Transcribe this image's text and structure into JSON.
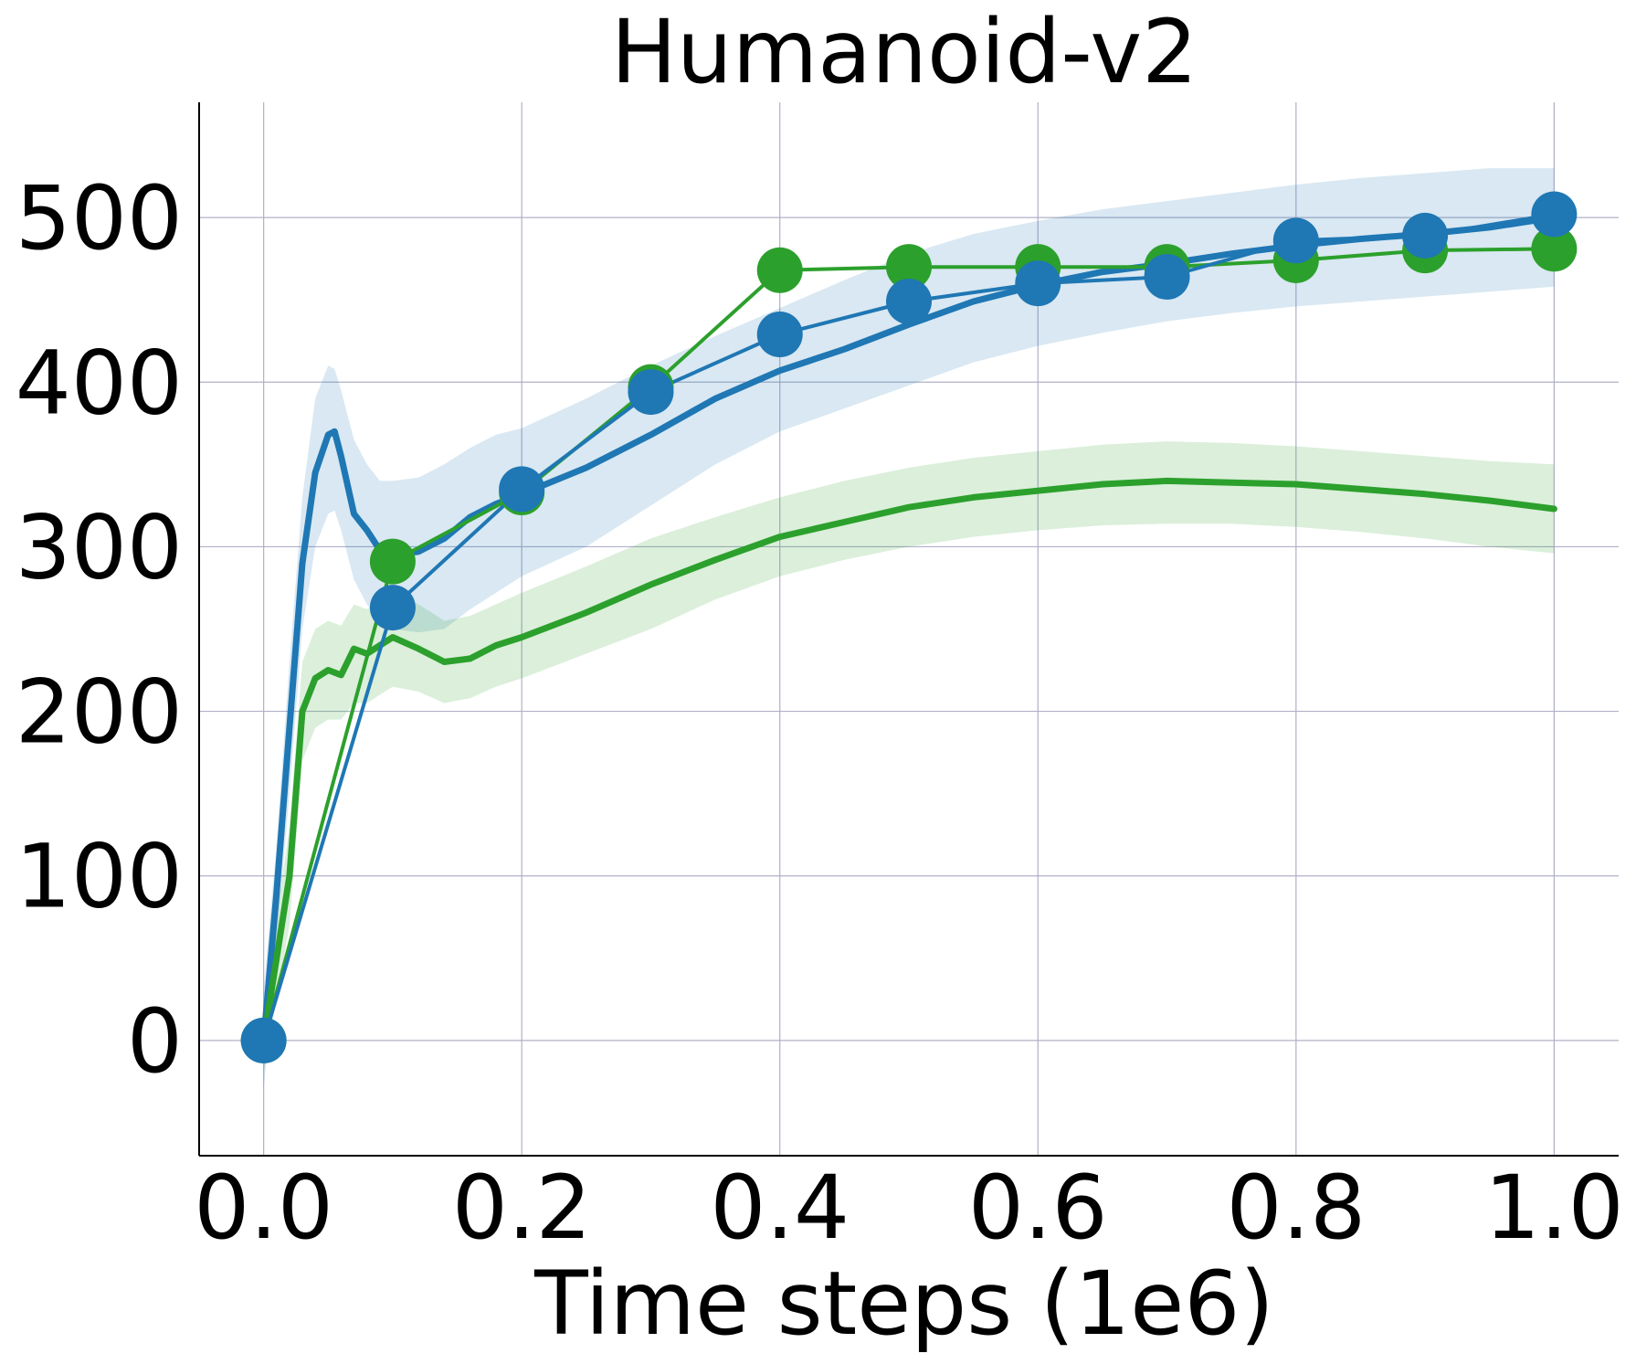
{
  "chart_data": {
    "type": "line",
    "title": "Humanoid-v2",
    "xlabel": "Time steps (1e6)",
    "ylabel": "",
    "xlim": [
      -0.05,
      1.05
    ],
    "ylim": [
      -70,
      570
    ],
    "xticks": [
      0.0,
      0.2,
      0.4,
      0.6,
      0.8,
      1.0
    ],
    "xtick_labels": [
      "0.0",
      "0.2",
      "0.4",
      "0.6",
      "0.8",
      "1.0"
    ],
    "yticks": [
      0,
      100,
      200,
      300,
      400,
      500
    ],
    "ytick_labels": [
      "0",
      "100",
      "200",
      "300",
      "400",
      "500"
    ],
    "grid": true,
    "colors": {
      "blue": "#1f77b4",
      "green": "#2ca02c"
    },
    "series": [
      {
        "color": "#1f77b4",
        "style": "curve-with-band",
        "x": [
          0.0,
          0.01,
          0.02,
          0.03,
          0.04,
          0.05,
          0.055,
          0.06,
          0.07,
          0.08,
          0.09,
          0.1,
          0.12,
          0.14,
          0.16,
          0.18,
          0.2,
          0.25,
          0.3,
          0.35,
          0.4,
          0.45,
          0.5,
          0.55,
          0.6,
          0.65,
          0.7,
          0.75,
          0.8,
          0.85,
          0.9,
          0.95,
          1.0
        ],
        "values": [
          0,
          90,
          190,
          290,
          345,
          368,
          370,
          355,
          320,
          310,
          298,
          295,
          297,
          305,
          318,
          326,
          332,
          348,
          368,
          390,
          407,
          420,
          435,
          449,
          459,
          467,
          472,
          478,
          483,
          487,
          490,
          494,
          500
        ],
        "band_lower": [
          -30,
          60,
          150,
          250,
          300,
          320,
          322,
          310,
          280,
          265,
          255,
          250,
          248,
          250,
          262,
          272,
          282,
          300,
          325,
          350,
          370,
          384,
          398,
          412,
          422,
          430,
          437,
          442,
          446,
          449,
          452,
          455,
          458
        ],
        "band_upper": [
          30,
          120,
          230,
          330,
          390,
          410,
          408,
          395,
          365,
          350,
          340,
          340,
          342,
          350,
          360,
          368,
          372,
          390,
          410,
          428,
          445,
          462,
          478,
          490,
          498,
          505,
          510,
          515,
          520,
          524,
          527,
          530,
          530
        ]
      },
      {
        "color": "#2ca02c",
        "style": "curve-with-band",
        "x": [
          0.0,
          0.01,
          0.02,
          0.03,
          0.04,
          0.05,
          0.06,
          0.07,
          0.08,
          0.09,
          0.1,
          0.12,
          0.14,
          0.16,
          0.18,
          0.2,
          0.25,
          0.3,
          0.35,
          0.4,
          0.45,
          0.5,
          0.55,
          0.6,
          0.65,
          0.7,
          0.75,
          0.8,
          0.85,
          0.9,
          0.95,
          1.0
        ],
        "values": [
          0,
          50,
          100,
          200,
          220,
          225,
          222,
          238,
          235,
          240,
          245,
          238,
          230,
          232,
          240,
          245,
          260,
          277,
          292,
          306,
          315,
          324,
          330,
          334,
          338,
          340,
          339,
          338,
          335,
          332,
          328,
          323
        ],
        "band_lower": [
          -20,
          25,
          70,
          170,
          190,
          195,
          195,
          205,
          205,
          210,
          215,
          212,
          205,
          208,
          215,
          220,
          235,
          250,
          268,
          282,
          292,
          300,
          306,
          310,
          313,
          314,
          314,
          312,
          309,
          305,
          300,
          296
        ],
        "band_upper": [
          20,
          75,
          130,
          230,
          250,
          255,
          252,
          265,
          262,
          268,
          272,
          265,
          255,
          258,
          265,
          272,
          288,
          305,
          318,
          330,
          340,
          348,
          354,
          358,
          362,
          364,
          363,
          361,
          358,
          355,
          352,
          350
        ]
      },
      {
        "color": "#2ca02c",
        "style": "line-with-markers",
        "x": [
          0.0,
          0.1,
          0.2,
          0.3,
          0.4,
          0.5,
          0.6,
          0.7,
          0.8,
          0.9,
          1.0
        ],
        "values": [
          0,
          291,
          333,
          397,
          468,
          470,
          470,
          470,
          474,
          480,
          481
        ]
      },
      {
        "color": "#1f77b4",
        "style": "line-with-markers",
        "x": [
          0.0,
          0.1,
          0.2,
          0.3,
          0.4,
          0.5,
          0.6,
          0.7,
          0.8,
          0.9,
          1.0
        ],
        "values": [
          0,
          263,
          335,
          394,
          429,
          449,
          460,
          464,
          486,
          489,
          502
        ]
      }
    ]
  }
}
